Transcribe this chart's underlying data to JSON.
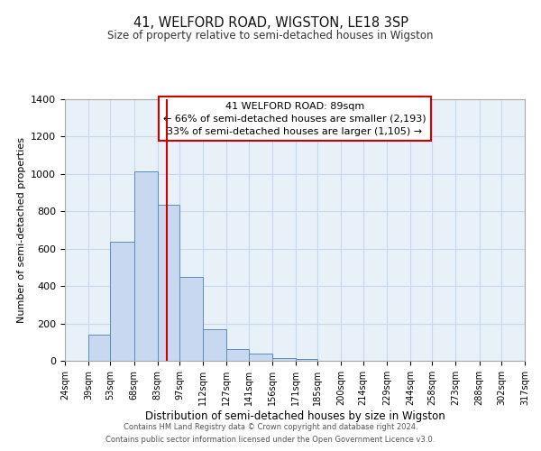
{
  "title": "41, WELFORD ROAD, WIGSTON, LE18 3SP",
  "subtitle": "Size of property relative to semi-detached houses in Wigston",
  "xlabel": "Distribution of semi-detached houses by size in Wigston",
  "ylabel": "Number of semi-detached properties",
  "bin_labels": [
    "24sqm",
    "39sqm",
    "53sqm",
    "68sqm",
    "83sqm",
    "97sqm",
    "112sqm",
    "127sqm",
    "141sqm",
    "156sqm",
    "171sqm",
    "185sqm",
    "200sqm",
    "214sqm",
    "229sqm",
    "244sqm",
    "258sqm",
    "273sqm",
    "288sqm",
    "302sqm",
    "317sqm"
  ],
  "bin_edges": [
    24,
    39,
    53,
    68,
    83,
    97,
    112,
    127,
    141,
    156,
    171,
    185,
    200,
    214,
    229,
    244,
    258,
    273,
    288,
    302,
    317
  ],
  "bar_values": [
    0,
    140,
    635,
    1015,
    835,
    450,
    170,
    65,
    40,
    15,
    10,
    0,
    0,
    0,
    0,
    0,
    0,
    0,
    0,
    0
  ],
  "property_line_x": 89,
  "annotation_title": "41 WELFORD ROAD: 89sqm",
  "annotation_line1": "← 66% of semi-detached houses are smaller (2,193)",
  "annotation_line2": "33% of semi-detached houses are larger (1,105) →",
  "annotation_box_color": "#ffffff",
  "annotation_border_color": "#cc0000",
  "bar_fill_color": "#c8d8f0",
  "bar_edge_color": "#5b8db8",
  "line_color": "#cc0000",
  "grid_color": "#c8d8ec",
  "background_color": "#e8f0f8",
  "ylim": [
    0,
    1400
  ],
  "yticks": [
    0,
    200,
    400,
    600,
    800,
    1000,
    1200,
    1400
  ],
  "footer1": "Contains HM Land Registry data © Crown copyright and database right 2024.",
  "footer2": "Contains public sector information licensed under the Open Government Licence v3.0."
}
